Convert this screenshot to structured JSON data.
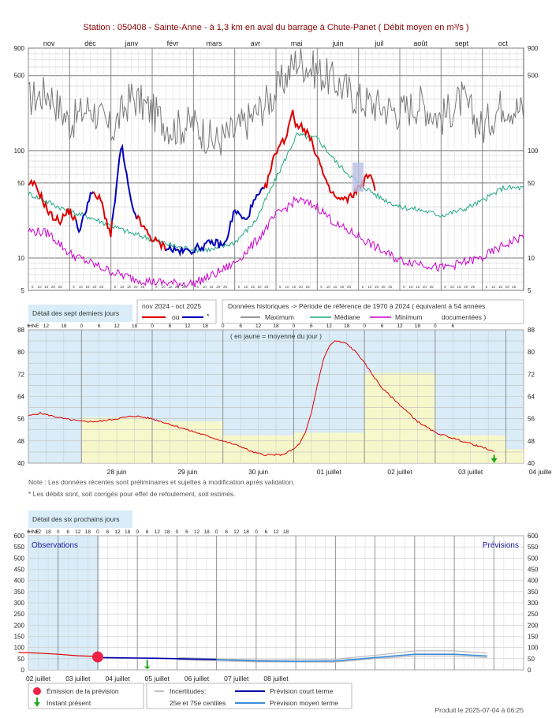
{
  "header": {
    "title": "Station : 050408     -   Sainte-Anne - à 1,3 km en aval du barrage à Chute-Panet   ( Débit moyen en m³/s )"
  },
  "colors": {
    "current_year": "#dd0000",
    "corrected": "#0000bb",
    "maximum": "#777777",
    "median": "#21a884",
    "minimum": "#cc00cc",
    "panel_blue": "#d9ecf7",
    "daily_mean_yellow": "#f7f7cc",
    "forecast_short": "#0000aa",
    "forecast_medium": "#3c8cdc",
    "emission": "#ee2244",
    "present": "#22aa22"
  },
  "top_chart": {
    "months": [
      "nov",
      "déc",
      "janv",
      "févr",
      "mars",
      "avr",
      "mai",
      "juin",
      "juil",
      "août",
      "sept",
      "oct"
    ],
    "day_ticks": [
      "5",
      "10",
      "15",
      "20",
      "25"
    ],
    "y_ticks": [
      "900",
      "500",
      "100",
      "50",
      "10",
      "5"
    ],
    "legend": {
      "section_label": "Détail des sept derniers jours",
      "period_label": "nov 2024 - oct 2025",
      "ou_label": "ou",
      "star_label": "*",
      "hist_label": "Données historiques -> Période de référence  de 1970 à 2024   ( équivalent à 54 années",
      "hist_label2": "documentées )",
      "max_label": "Maximum",
      "median_label": "Médiane",
      "min_label": "Minimum"
    }
  },
  "seven_days": {
    "tz_label": "HNE",
    "hour_ticks": [
      "6",
      "12",
      "18",
      "0",
      "6",
      "12",
      "18",
      "0",
      "6",
      "12",
      "18",
      "0",
      "6",
      "12",
      "18",
      "0",
      "6",
      "12",
      "18",
      "0",
      "6",
      "12",
      "18",
      "0",
      "6"
    ],
    "y_ticks": [
      "88",
      "80",
      "72",
      "64",
      "56",
      "48",
      "40"
    ],
    "days": [
      "28 juin",
      "29 juin",
      "30 juin",
      "01 juillet",
      "02 juillet",
      "03 juillet",
      "04 juillet"
    ],
    "annotation": "( en jaune = moyenne du jour )",
    "note1": "Note : Les données récentes sont préliminaires et sujettes à modification après validation.",
    "note2": "* Les débits sont, soit corrigés pour effet de refoulement, soit estimés."
  },
  "six_days": {
    "section_label": "Détail des six prochains jours",
    "tz_label": "HNE",
    "hour_ticks": [
      "6",
      "12",
      "18",
      "0",
      "6",
      "12",
      "18",
      "0",
      "6",
      "12",
      "18",
      "0",
      "6",
      "12",
      "18",
      "0",
      "6",
      "12",
      "18",
      "0",
      "6",
      "12",
      "18",
      "0",
      "6",
      "12",
      "18"
    ],
    "y_ticks": [
      "600",
      "550",
      "500",
      "450",
      "400",
      "350",
      "300",
      "250",
      "200",
      "150",
      "100",
      "50",
      "0"
    ],
    "days": [
      "02 juillet",
      "03 juillet",
      "04 juillet",
      "05 juillet",
      "06 juillet",
      "07 juillet",
      "08 juillet"
    ],
    "observations_label": "Observations",
    "previsions_label": "Prévisions",
    "legend": {
      "emission": "Émission de la prévision",
      "present": "Instant présent",
      "uncert1": "Incertitudes:",
      "uncert2": "25e et 75e centiles",
      "short_term": "Prévision court terme",
      "medium_term": "Prévision moyen terme"
    }
  },
  "footer": {
    "produced": "Produit le 2025-07-04 à 06:25"
  },
  "chart_data": [
    {
      "type": "line",
      "title": "Station : 050408 - Sainte-Anne - à 1,3 km en aval du barrage à Chute-Panet ( Débit moyen en m³/s )",
      "y_scale": "log",
      "ylim": [
        5,
        900
      ],
      "x_categories": [
        "nov",
        "déc",
        "janv",
        "févr",
        "mars",
        "avr",
        "mai",
        "juin",
        "juil",
        "août",
        "sept",
        "oct"
      ],
      "series": [
        {
          "name": "Maximum",
          "x": [
            0,
            0.5,
            1,
            1.5,
            2,
            2.5,
            3,
            3.5,
            4,
            4.5,
            5,
            5.5,
            6,
            6.5,
            7,
            7.5,
            8,
            8.5,
            9,
            9.5,
            10,
            10.5,
            11,
            11.5,
            12
          ],
          "values": [
            300,
            350,
            180,
            260,
            150,
            320,
            230,
            160,
            180,
            120,
            150,
            220,
            350,
            700,
            550,
            420,
            300,
            260,
            230,
            280,
            200,
            300,
            160,
            280,
            230
          ]
        },
        {
          "name": "Médiane",
          "x": [
            0,
            0.5,
            1,
            1.5,
            2,
            2.5,
            3,
            3.5,
            4,
            4.5,
            5,
            5.5,
            6,
            6.5,
            7,
            7.5,
            8,
            8.5,
            9,
            9.5,
            10,
            10.5,
            11,
            11.5,
            12
          ],
          "values": [
            40,
            33,
            27,
            24,
            20,
            17,
            15,
            13,
            12,
            12,
            14,
            22,
            55,
            140,
            130,
            75,
            50,
            37,
            30,
            28,
            25,
            28,
            34,
            45,
            45
          ]
        },
        {
          "name": "Minimum",
          "x": [
            0,
            0.5,
            1,
            1.5,
            2,
            2.5,
            3,
            3.5,
            4,
            4.5,
            5,
            5.5,
            6,
            6.5,
            7,
            7.5,
            8,
            8.5,
            9,
            9.5,
            10,
            10.5,
            11,
            11.5,
            12
          ],
          "values": [
            18,
            17,
            11,
            9,
            7.5,
            6.5,
            6,
            5.8,
            5.8,
            7,
            9,
            14,
            25,
            35,
            30,
            20,
            16,
            12,
            9.5,
            9,
            8,
            9,
            10,
            13,
            16
          ]
        },
        {
          "name": "nov 2024 - oct 2025",
          "x": [
            0,
            0.1,
            0.25,
            0.5,
            0.75,
            1.0,
            1.25,
            1.5,
            1.75,
            2.0,
            2.25,
            2.5,
            2.75,
            3.0,
            3.25,
            3.5,
            3.75,
            4.0,
            4.25,
            4.5,
            4.75,
            5.0,
            5.25,
            5.5,
            5.75,
            6.0,
            6.25,
            6.4,
            6.5,
            6.6,
            6.75,
            7.0,
            7.25,
            7.5,
            7.75,
            8.0,
            8.25,
            8.4
          ],
          "values": [
            45,
            50,
            42,
            26,
            22,
            28,
            18,
            40,
            35,
            16,
            115,
            30,
            20,
            15,
            13,
            12,
            11.5,
            12,
            13,
            14,
            13,
            28,
            22,
            35,
            45,
            100,
            135,
            250,
            160,
            175,
            150,
            90,
            45,
            35,
            35,
            45,
            60,
            45
          ]
        }
      ]
    },
    {
      "type": "line",
      "title": "Détail des sept derniers jours",
      "ylim": [
        40,
        88
      ],
      "x_unit": "hours since 28 juin 00:00 HNE",
      "series": [
        {
          "name": "Débit",
          "x": [
            0,
            4,
            8,
            12,
            18,
            24,
            30,
            36,
            42,
            48,
            54,
            60,
            66,
            72,
            76,
            80,
            84,
            86,
            88,
            90,
            92,
            94,
            96,
            98,
            100,
            102,
            104,
            108,
            112,
            116,
            120,
            126,
            132,
            138,
            144,
            150,
            156,
            158
          ],
          "values": [
            57,
            58,
            57,
            56,
            55,
            55,
            56,
            57,
            56,
            54,
            52,
            50,
            48,
            46,
            44,
            43,
            43,
            43,
            44,
            45,
            47,
            51,
            58,
            68,
            77,
            82,
            84,
            83,
            79,
            73,
            67,
            61,
            55,
            51,
            49,
            47,
            45,
            44
          ]
        },
        {
          "name": "moyenne du jour",
          "categories": [
            "28 juin",
            "29 juin",
            "30 juin",
            "01 juillet",
            "02 juillet",
            "03 juillet",
            "04 juillet"
          ],
          "values": [
            56.5,
            55.0,
            50.0,
            51.0,
            72.5,
            50.0,
            45.0
          ]
        }
      ]
    },
    {
      "type": "line",
      "title": "Détail des six prochains jours",
      "ylim": [
        0,
        600
      ],
      "x_unit": "hours since 02 juillet 00:00 HNE",
      "series": [
        {
          "name": "Observations",
          "x": [
            0,
            12,
            24,
            36,
            48
          ],
          "values": [
            78,
            75,
            70,
            63,
            60
          ]
        },
        {
          "name": "Prévision court terme",
          "x": [
            48,
            60,
            72,
            84,
            96,
            108,
            120
          ],
          "values": [
            55,
            54,
            53,
            52,
            50,
            48,
            47
          ]
        },
        {
          "name": "Prévision moyen terme",
          "x": [
            96,
            120,
            144,
            168,
            192,
            216,
            240,
            264,
            284
          ],
          "values": [
            50,
            46,
            40,
            38,
            40,
            55,
            70,
            70,
            62
          ]
        },
        {
          "name": "25e centile",
          "x": [
            96,
            144,
            192,
            216,
            240,
            264,
            284
          ],
          "values": [
            45,
            36,
            35,
            50,
            62,
            62,
            55
          ]
        },
        {
          "name": "75e centile",
          "x": [
            96,
            144,
            192,
            216,
            240,
            264,
            284
          ],
          "values": [
            55,
            45,
            48,
            65,
            85,
            85,
            75
          ]
        }
      ],
      "emission_x": 48,
      "emission_value": 58,
      "present_x": 78
    }
  ]
}
